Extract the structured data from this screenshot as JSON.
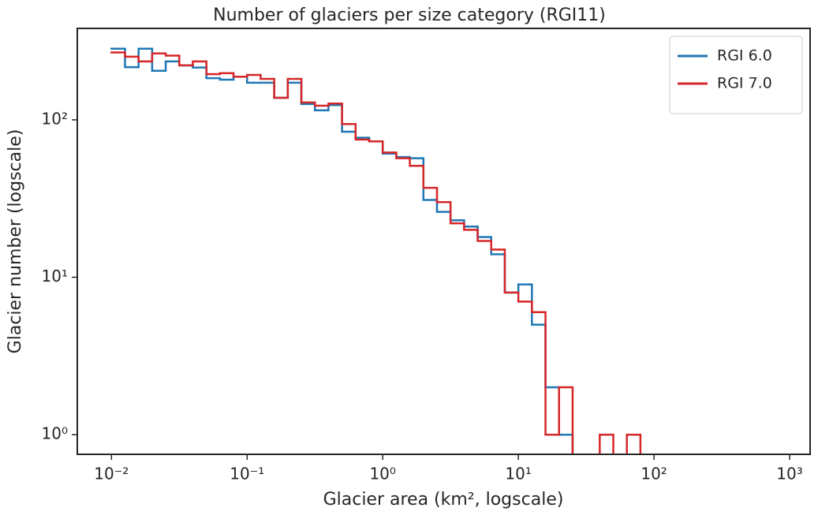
{
  "chart_data": {
    "type": "histogram",
    "title": "Number of glaciers per size category (RGI11)",
    "xlabel": "Glacier area (km², logscale)",
    "ylabel": "Glacier number (logscale)",
    "xscale": "log",
    "yscale": "log",
    "bins": [
      0.01,
      0.012589,
      0.015849,
      0.019953,
      0.025119,
      0.031623,
      0.039811,
      0.050119,
      0.063096,
      0.079433,
      0.1,
      0.12589,
      0.15849,
      0.19953,
      0.25119,
      0.31623,
      0.39811,
      0.50119,
      0.63096,
      0.79433,
      1,
      1.2589,
      1.5849,
      1.9953,
      2.5119,
      3.1623,
      3.9811,
      5.0119,
      6.3096,
      7.9433,
      10,
      12.589,
      15.849,
      19.953,
      25.119,
      31.623,
      39.811,
      50.119,
      63.096,
      79.433,
      100
    ],
    "series": [
      {
        "name": "RGI 6.0",
        "color": "#1f77b4",
        "values": [
          283,
          216,
          283,
          205,
          235,
          222,
          215,
          184,
          180,
          188,
          172,
          172,
          138,
          172,
          126,
          115,
          124,
          84,
          77,
          73,
          61,
          58,
          57,
          31,
          26,
          23,
          21,
          18,
          14,
          8,
          9,
          5,
          2,
          1,
          0,
          0,
          0,
          0,
          0,
          0
        ]
      },
      {
        "name": "RGI 7.0",
        "color": "#d62728",
        "values": [
          268,
          252,
          235,
          264,
          256,
          222,
          235,
          195,
          198,
          188,
          193,
          182,
          138,
          182,
          129,
          123,
          127,
          94,
          75,
          73,
          62,
          57,
          51,
          37,
          30,
          22,
          20,
          17,
          15,
          8,
          7,
          6,
          1,
          2,
          0,
          0,
          1,
          0,
          1,
          0
        ]
      }
    ],
    "xlim": [
      0.0056,
      1416
    ],
    "ylim": [
      0.75,
      381
    ],
    "xticks": [
      {
        "value": 0.01,
        "label": "10⁻²"
      },
      {
        "value": 0.1,
        "label": "10⁻¹"
      },
      {
        "value": 1,
        "label": "10⁰"
      },
      {
        "value": 10,
        "label": "10¹"
      },
      {
        "value": 100,
        "label": "10²"
      },
      {
        "value": 1000,
        "label": "10³"
      }
    ],
    "yticks": [
      {
        "value": 1,
        "label": "10⁰"
      },
      {
        "value": 10,
        "label": "10¹"
      },
      {
        "value": 100,
        "label": "10²"
      }
    ],
    "legend": "upper right"
  }
}
